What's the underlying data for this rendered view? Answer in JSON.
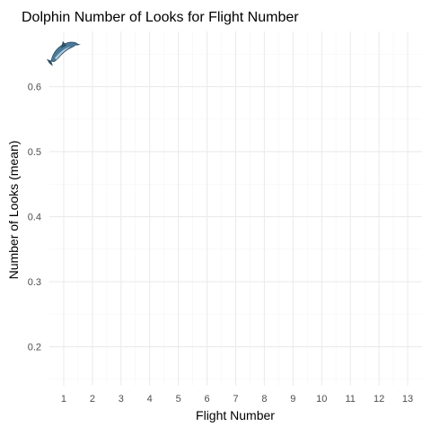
{
  "chart_data": {
    "type": "scatter",
    "title": "Dolphin Number of Looks for Flight Number",
    "xlabel": "Flight Number",
    "ylabel": "Number of Looks (mean)",
    "x_ticks": [
      "1",
      "2",
      "3",
      "4",
      "5",
      "6",
      "7",
      "8",
      "9",
      "10",
      "11",
      "12",
      "13"
    ],
    "y_ticks": [
      "0.2",
      "0.3",
      "0.4",
      "0.5",
      "0.6"
    ],
    "xlim": [
      0.5,
      13.5
    ],
    "ylim": [
      0.14,
      0.685
    ],
    "grid": true,
    "series": [
      {
        "marker": "dolphin-icon",
        "points": [
          {
            "x": 1,
            "y": 0.655
          }
        ]
      }
    ],
    "colors": {
      "grid_major": "#ebebeb",
      "grid_minor": "#f5f5f5",
      "tick_text": "#4d4d4d",
      "text": "#000000",
      "dolphin_body": "#4a7a99",
      "dolphin_dark": "#2d4f66",
      "dolphin_belly": "#c9dbe6"
    }
  }
}
